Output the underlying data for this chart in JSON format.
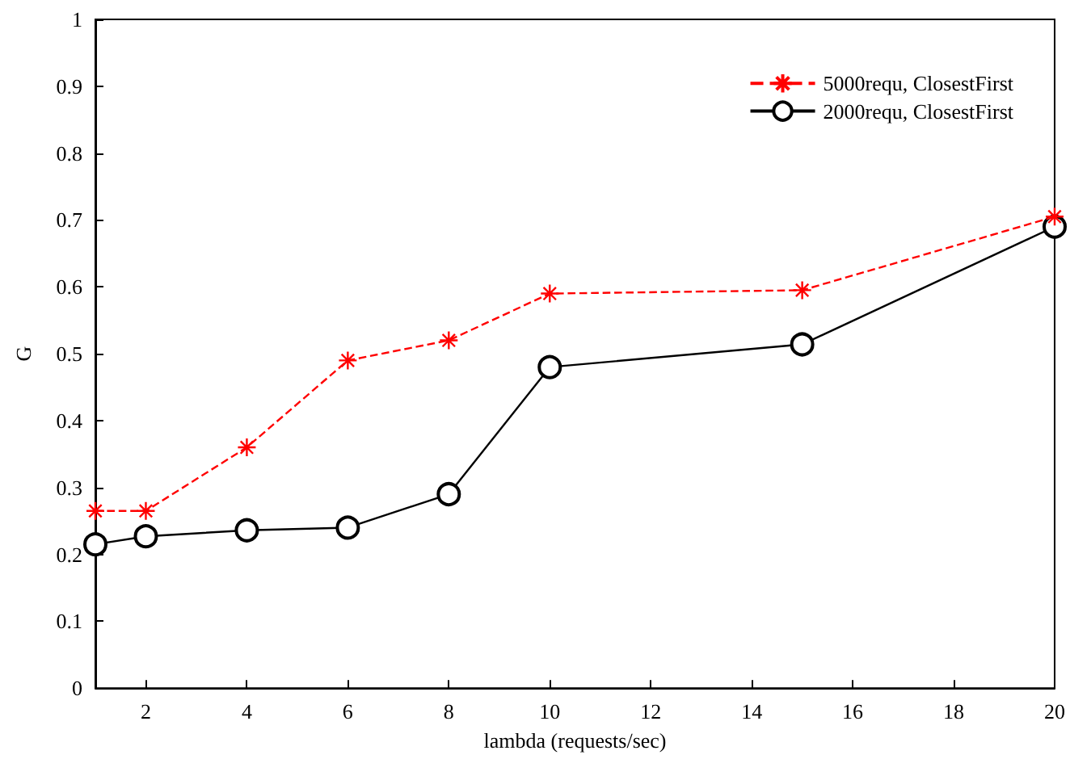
{
  "chart_data": {
    "type": "line",
    "xlabel": "lambda (requests/sec)",
    "ylabel": "G",
    "x": [
      1,
      2,
      4,
      6,
      8,
      10,
      15,
      20
    ],
    "series": [
      {
        "name": "5000requ, ClosestFirst",
        "color": "#ff0000",
        "marker": "cross",
        "line_style": "dashed",
        "values": [
          0.265,
          0.265,
          0.36,
          0.49,
          0.52,
          0.59,
          0.595,
          0.705
        ]
      },
      {
        "name": "2000requ, ClosestFirst",
        "color": "#000000",
        "marker": "circle",
        "line_style": "solid",
        "values": [
          0.215,
          0.227,
          0.236,
          0.24,
          0.29,
          0.48,
          0.514,
          0.69
        ]
      }
    ],
    "xlim": [
      1,
      20
    ],
    "xticks": [
      2,
      4,
      6,
      8,
      10,
      12,
      14,
      16,
      18,
      20
    ],
    "ylim": [
      0,
      1
    ],
    "yticks": [
      0,
      0.1,
      0.2,
      0.3,
      0.4,
      0.5,
      0.6,
      0.7,
      0.8,
      0.9,
      1
    ],
    "grid": false,
    "legend": "top right"
  }
}
